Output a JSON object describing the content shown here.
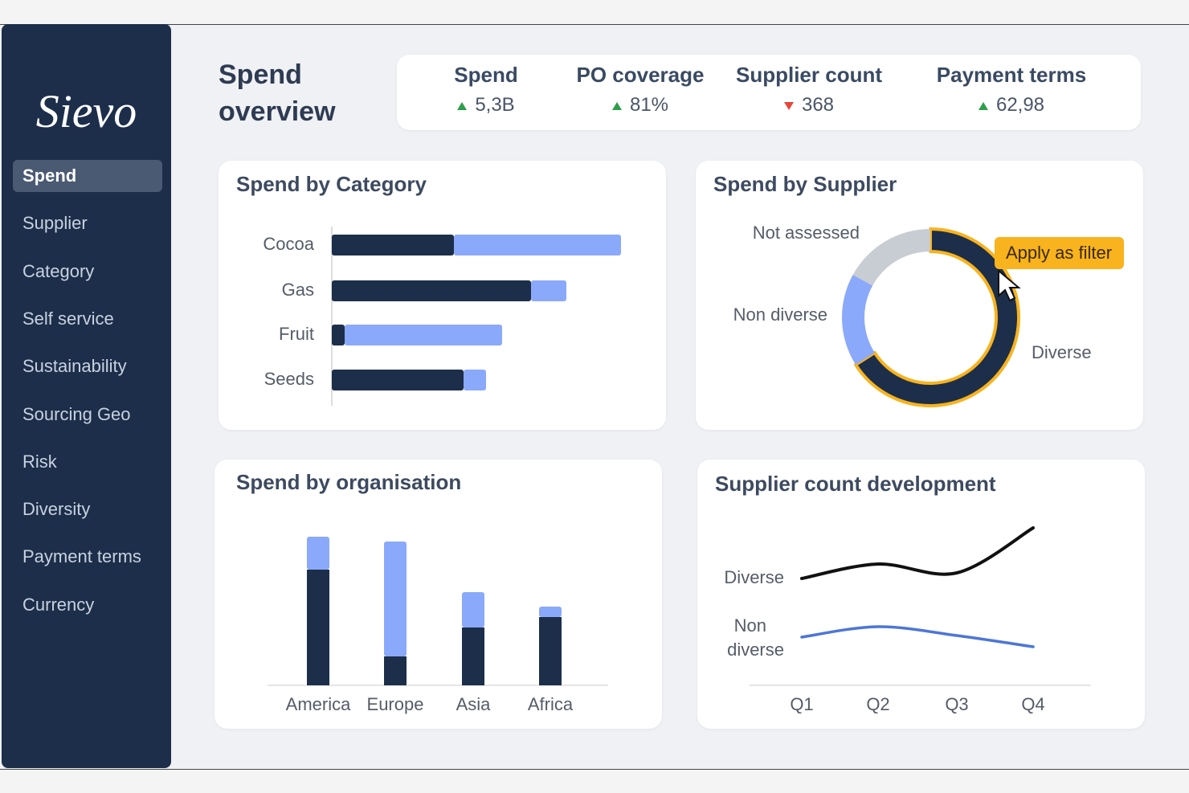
{
  "sidebar": {
    "logo": "Sievo",
    "nav": [
      "Spend",
      "Supplier",
      "Category",
      "Self service",
      "Sustainability",
      "Sourcing Geo",
      "Risk",
      "Diversity",
      "Payment terms",
      "Currency"
    ],
    "active": 0
  },
  "header": {
    "title": "Spend overview"
  },
  "kpis": [
    {
      "label": "Spend",
      "value": "5,3B",
      "trend": "up"
    },
    {
      "label": "PO coverage",
      "value": "81%",
      "trend": "up"
    },
    {
      "label": "Supplier count",
      "value": "368",
      "trend": "down"
    },
    {
      "label": "Payment terms",
      "value": "62,98",
      "trend": "up"
    }
  ],
  "chart_data": [
    {
      "type": "hbar",
      "title": "Spend by Category",
      "stacked": true,
      "categories": [
        "Cocoa",
        "Gas",
        "Fruit",
        "Seeds"
      ],
      "series": [
        {
          "color": "#1c2e4a",
          "values": [
            38,
            62,
            4,
            41
          ]
        },
        {
          "color": "#8ba9fa",
          "values": [
            52,
            11,
            49,
            7
          ]
        }
      ],
      "xlim": [
        0,
        100
      ]
    },
    {
      "type": "donut",
      "title": "Spend by Supplier",
      "categories": [
        "Diverse",
        "Non diverse",
        "Not assessed"
      ],
      "values": [
        66,
        17,
        17
      ],
      "colors": [
        "#1c2e4a",
        "#8ba9fa",
        "#c8ccd3"
      ],
      "highlight": 0,
      "highlight_color": "#f8b31e",
      "tooltip": "Apply as filter"
    },
    {
      "type": "bar",
      "title": "Spend by organisation",
      "stacked": true,
      "categories": [
        "America",
        "Europe",
        "Asia",
        "Africa"
      ],
      "series": [
        {
          "color": "#1c2e4a",
          "values": [
            144,
            36,
            72,
            85
          ]
        },
        {
          "color": "#8ba9fa",
          "values": [
            41,
            143,
            44,
            13
          ]
        }
      ],
      "ylim": [
        0,
        200
      ]
    },
    {
      "type": "line",
      "title": "Supplier count development",
      "categories": [
        "Q1",
        "Q2",
        "Q3",
        "Q4"
      ],
      "series": [
        {
          "name": "Diverse",
          "color": "#111111",
          "values": [
            133,
            151,
            140,
            196
          ]
        },
        {
          "name": "Non diverse",
          "color": "#4d76d6",
          "values": [
            60,
            73,
            62,
            48
          ]
        }
      ],
      "ylim": [
        0,
        200
      ]
    }
  ]
}
